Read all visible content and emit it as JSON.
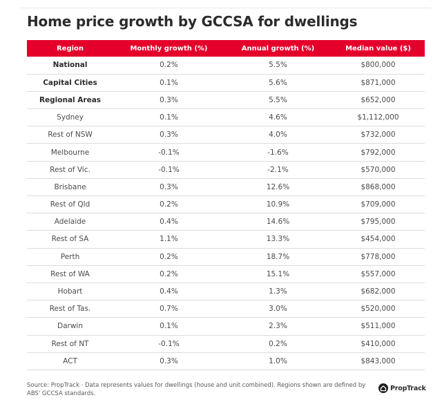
{
  "title": "Home price growth by GCCSA for dwellings",
  "table": {
    "headers": [
      "Region",
      "Monthly growth (%)",
      "Annual growth (%)",
      "Median value ($)"
    ],
    "rows": [
      {
        "region": "National",
        "monthly": "0.2%",
        "annual": "5.5%",
        "median": "$800,000",
        "bold": true
      },
      {
        "region": "Capital Cities",
        "monthly": "0.1%",
        "annual": "5.6%",
        "median": "$871,000",
        "bold": true
      },
      {
        "region": "Regional Areas",
        "monthly": "0.3%",
        "annual": "5.5%",
        "median": "$652,000",
        "bold": true
      },
      {
        "region": "Sydney",
        "monthly": "0.1%",
        "annual": "4.6%",
        "median": "$1,112,000",
        "bold": false
      },
      {
        "region": "Rest of NSW",
        "monthly": "0.3%",
        "annual": "4.0%",
        "median": "$732,000",
        "bold": false
      },
      {
        "region": "Melbourne",
        "monthly": "-0.1%",
        "annual": "-1.6%",
        "median": "$792,000",
        "bold": false
      },
      {
        "region": "Rest of Vic.",
        "monthly": "-0.1%",
        "annual": "-2.1%",
        "median": "$570,000",
        "bold": false
      },
      {
        "region": "Brisbane",
        "monthly": "0.3%",
        "annual": "12.6%",
        "median": "$868,000",
        "bold": false
      },
      {
        "region": "Rest of Qld",
        "monthly": "0.2%",
        "annual": "10.9%",
        "median": "$709,000",
        "bold": false
      },
      {
        "region": "Adelaide",
        "monthly": "0.4%",
        "annual": "14.6%",
        "median": "$795,000",
        "bold": false
      },
      {
        "region": "Rest of SA",
        "monthly": "1.1%",
        "annual": "13.3%",
        "median": "$454,000",
        "bold": false
      },
      {
        "region": "Perth",
        "monthly": "0.2%",
        "annual": "18.7%",
        "median": "$778,000",
        "bold": false
      },
      {
        "region": "Rest of WA",
        "monthly": "0.2%",
        "annual": "15.1%",
        "median": "$557,000",
        "bold": false
      },
      {
        "region": "Hobart",
        "monthly": "0.4%",
        "annual": "1.3%",
        "median": "$682,000",
        "bold": false
      },
      {
        "region": "Rest of Tas.",
        "monthly": "0.7%",
        "annual": "3.0%",
        "median": "$520,000",
        "bold": false
      },
      {
        "region": "Darwin",
        "monthly": "0.1%",
        "annual": "2.3%",
        "median": "$511,000",
        "bold": false
      },
      {
        "region": "Rest of NT",
        "monthly": "-0.1%",
        "annual": "0.2%",
        "median": "$410,000",
        "bold": false
      },
      {
        "region": "ACT",
        "monthly": "0.3%",
        "annual": "1.0%",
        "median": "$843,000",
        "bold": false
      }
    ]
  },
  "footer": {
    "note": "Source: PropTrack · Data represents values for dwellings (house and unit combined). Regions shown are defined by ABS' GCCSA standards.",
    "logo_icon": "house-in-circle-icon",
    "logo_text": "PropTrack"
  },
  "colors": {
    "header_bg": "#e4002b",
    "header_text": "#ffffff",
    "title": "#2b2b2b",
    "row_divider": "#dcdcdc"
  }
}
